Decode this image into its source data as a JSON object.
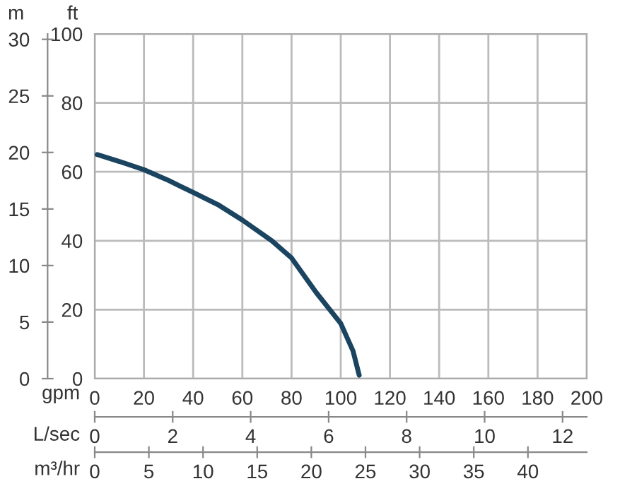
{
  "chart_data": {
    "type": "line",
    "xlabel": "gpm",
    "ylabel": "ft",
    "y2label": "m",
    "x2label": "L/sec",
    "series": [
      {
        "color": "#1b4460",
        "x": [
          1,
          10,
          20,
          30,
          40,
          50,
          60,
          72,
          80,
          90,
          100,
          105,
          107.5
        ],
        "values": [
          65,
          63,
          60.6,
          57.5,
          54,
          50.5,
          46,
          40,
          35,
          25,
          16,
          8,
          1
        ]
      }
    ],
    "xlim": [
      0,
      200
    ],
    "xticks": [
      0,
      20,
      40,
      60,
      80,
      100,
      120,
      140,
      160,
      180,
      200
    ],
    "ylim": [
      0,
      100
    ],
    "yticks": [
      0,
      20,
      40,
      60,
      80,
      100
    ],
    "y2lim": [
      0,
      30.48
    ],
    "y2ticks": [
      0,
      5,
      10,
      15,
      20,
      25,
      30
    ],
    "x2lim": [
      0,
      12.62
    ],
    "x2ticks": [
      0,
      2,
      4,
      6,
      8,
      10,
      12
    ],
    "annotations": [
      "m³/hr",
      "0",
      "5",
      "10",
      "15",
      "20",
      "25",
      "30",
      "35",
      "40"
    ],
    "grid": true
  }
}
